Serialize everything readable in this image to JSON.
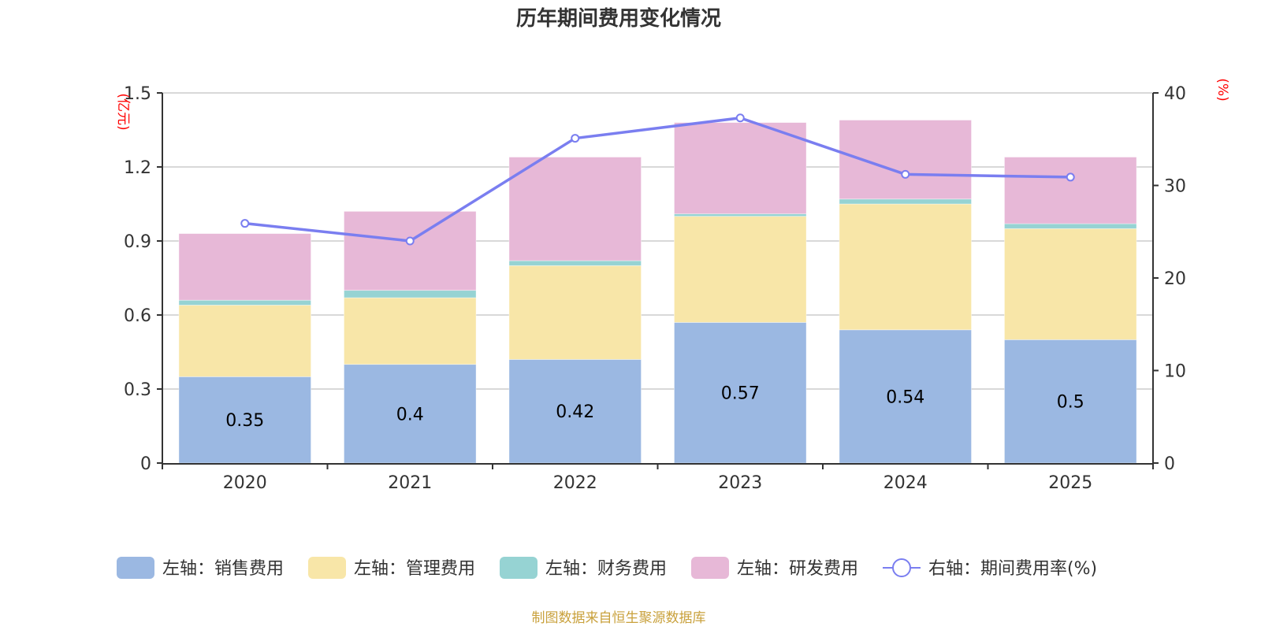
{
  "chart_data": {
    "type": "bar",
    "title": "历年期间费用变化情况",
    "categories": [
      "2020",
      "2021",
      "2022",
      "2023",
      "2024",
      "2025"
    ],
    "left_axis": {
      "unit_label": "(亿元)",
      "ylim": [
        0,
        1.5
      ],
      "ticks": [
        "0",
        "0.3",
        "0.6",
        "0.9",
        "1.2",
        "1.5"
      ],
      "tick_values": [
        0,
        0.3,
        0.6,
        0.9,
        1.2,
        1.5
      ]
    },
    "right_axis": {
      "unit_label": "(%)",
      "ylim": [
        0,
        40
      ],
      "ticks": [
        "0",
        "10",
        "20",
        "30",
        "40"
      ],
      "tick_values": [
        0,
        10,
        20,
        30,
        40
      ]
    },
    "grid": true,
    "stacked": true,
    "series": [
      {
        "name": "左轴：销售费用",
        "type": "bar",
        "axis": "left",
        "color": "#9bb8e2",
        "values": [
          0.35,
          0.4,
          0.42,
          0.57,
          0.54,
          0.5
        ],
        "labels": [
          "0.35",
          "0.4",
          "0.42",
          "0.57",
          "0.54",
          "0.5"
        ]
      },
      {
        "name": "左轴：管理费用",
        "type": "bar",
        "axis": "left",
        "color": "#f8e6a8",
        "values": [
          0.29,
          0.27,
          0.38,
          0.43,
          0.51,
          0.45
        ]
      },
      {
        "name": "左轴：财务费用",
        "type": "bar",
        "axis": "left",
        "color": "#96d3d3",
        "values": [
          0.02,
          0.03,
          0.02,
          0.01,
          0.02,
          0.02
        ]
      },
      {
        "name": "左轴：研发费用",
        "type": "bar",
        "axis": "left",
        "color": "#e7b8d7",
        "values": [
          0.27,
          0.32,
          0.42,
          0.37,
          0.32,
          0.27
        ]
      },
      {
        "name": "右轴：期间费用率(%)",
        "type": "line",
        "axis": "right",
        "color": "#7a7ef0",
        "values": [
          25.9,
          24.0,
          35.1,
          37.3,
          31.2,
          30.9
        ]
      }
    ],
    "legend_position": "bottom",
    "source": "制图数据来自恒生聚源数据库"
  }
}
